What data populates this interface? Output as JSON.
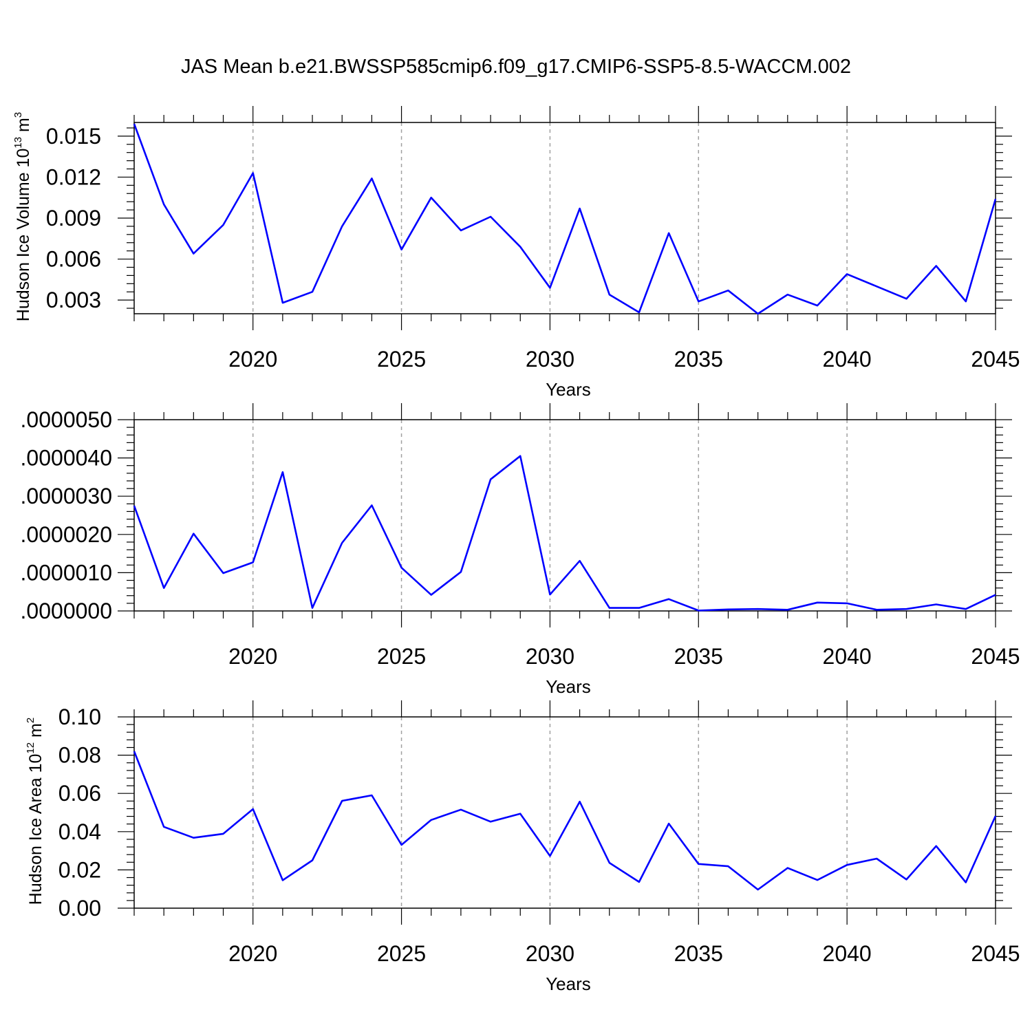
{
  "title": "JAS Mean b.e21.BWSSP585cmip6.f09_g17.CMIP6-SSP5-8.5-WACCM.002",
  "colors": {
    "line": "#0000ff",
    "axis": "#000000",
    "grid": "#a0a0a0"
  },
  "chart_data": [
    {
      "type": "line",
      "xlabel": "Years",
      "ylabel": {
        "text": "Hudson Ice Volume 10",
        "sup": "13",
        "unit": " m",
        "unit_sup": "3"
      },
      "xlim": [
        2016,
        2045
      ],
      "ylim": [
        0.002,
        0.016
      ],
      "xticks": [
        2020,
        2025,
        2030,
        2035,
        2040,
        2045
      ],
      "yticks": [
        0.003,
        0.006,
        0.009,
        0.012,
        0.015
      ],
      "ytick_labels": [
        "0.003",
        "0.006",
        "0.009",
        "0.012",
        "0.015"
      ],
      "x": [
        2016,
        2017,
        2018,
        2019,
        2020,
        2021,
        2022,
        2023,
        2024,
        2025,
        2026,
        2027,
        2028,
        2029,
        2030,
        2031,
        2032,
        2033,
        2034,
        2035,
        2036,
        2037,
        2038,
        2039,
        2040,
        2041,
        2042,
        2043,
        2044,
        2045
      ],
      "values": [
        0.0159,
        0.01,
        0.0064,
        0.0085,
        0.0123,
        0.0028,
        0.0036,
        0.0084,
        0.0119,
        0.0067,
        0.0105,
        0.0081,
        0.0091,
        0.0069,
        0.0039,
        0.0097,
        0.0034,
        0.0021,
        0.0079,
        0.0029,
        0.0037,
        0.002,
        0.0034,
        0.0026,
        0.0049,
        0.004,
        0.0031,
        0.0055,
        0.0029,
        0.0104
      ]
    },
    {
      "type": "line",
      "xlabel": "Years",
      "ylabel": null,
      "xlim": [
        2016,
        2045
      ],
      "ylim": [
        0.0,
        5e-06
      ],
      "xticks": [
        2020,
        2025,
        2030,
        2035,
        2040,
        2045
      ],
      "yticks": [
        0.0,
        1e-06,
        2e-06,
        3e-06,
        4e-06,
        5e-06
      ],
      "ytick_labels": [
        ".0000000",
        ".0000010",
        ".0000020",
        ".0000030",
        ".0000040",
        ".0000050"
      ],
      "x": [
        2016,
        2017,
        2018,
        2019,
        2020,
        2021,
        2022,
        2023,
        2024,
        2025,
        2026,
        2027,
        2028,
        2029,
        2030,
        2031,
        2032,
        2033,
        2034,
        2035,
        2036,
        2037,
        2038,
        2039,
        2040,
        2041,
        2042,
        2043,
        2044,
        2045
      ],
      "values": [
        2.75e-06,
        6e-07,
        2.02e-06,
        9.9e-07,
        1.27e-06,
        3.63e-06,
        8e-08,
        1.78e-06,
        2.76e-06,
        1.13e-06,
        4.2e-07,
        1.02e-06,
        3.44e-06,
        4.05e-06,
        4.3e-07,
        1.31e-06,
        8e-08,
        8e-08,
        3.1e-07,
        1e-08,
        4e-08,
        5e-08,
        3e-08,
        2.2e-07,
        2e-07,
        3e-08,
        5e-08,
        1.7e-07,
        5e-08,
        4.2e-07
      ]
    },
    {
      "type": "line",
      "xlabel": "Years",
      "ylabel": {
        "text": "Hudson Ice Area 10",
        "sup": "12",
        "unit": " m",
        "unit_sup": "2"
      },
      "xlim": [
        2016,
        2045
      ],
      "ylim": [
        0.0,
        0.1
      ],
      "xticks": [
        2020,
        2025,
        2030,
        2035,
        2040,
        2045
      ],
      "yticks": [
        0.0,
        0.02,
        0.04,
        0.06,
        0.08,
        0.1
      ],
      "ytick_labels": [
        "0.00",
        "0.02",
        "0.04",
        "0.06",
        "0.08",
        "0.10"
      ],
      "x": [
        2016,
        2017,
        2018,
        2019,
        2020,
        2021,
        2022,
        2023,
        2024,
        2025,
        2026,
        2027,
        2028,
        2029,
        2030,
        2031,
        2032,
        2033,
        2034,
        2035,
        2036,
        2037,
        2038,
        2039,
        2040,
        2041,
        2042,
        2043,
        2044,
        2045
      ],
      "values": [
        0.082,
        0.0425,
        0.0368,
        0.0389,
        0.0518,
        0.0146,
        0.025,
        0.0561,
        0.059,
        0.0331,
        0.0461,
        0.0515,
        0.0452,
        0.0494,
        0.0273,
        0.0557,
        0.0237,
        0.0137,
        0.0442,
        0.0231,
        0.0219,
        0.0097,
        0.021,
        0.0147,
        0.0226,
        0.0259,
        0.015,
        0.0325,
        0.0135,
        0.0482
      ]
    }
  ]
}
